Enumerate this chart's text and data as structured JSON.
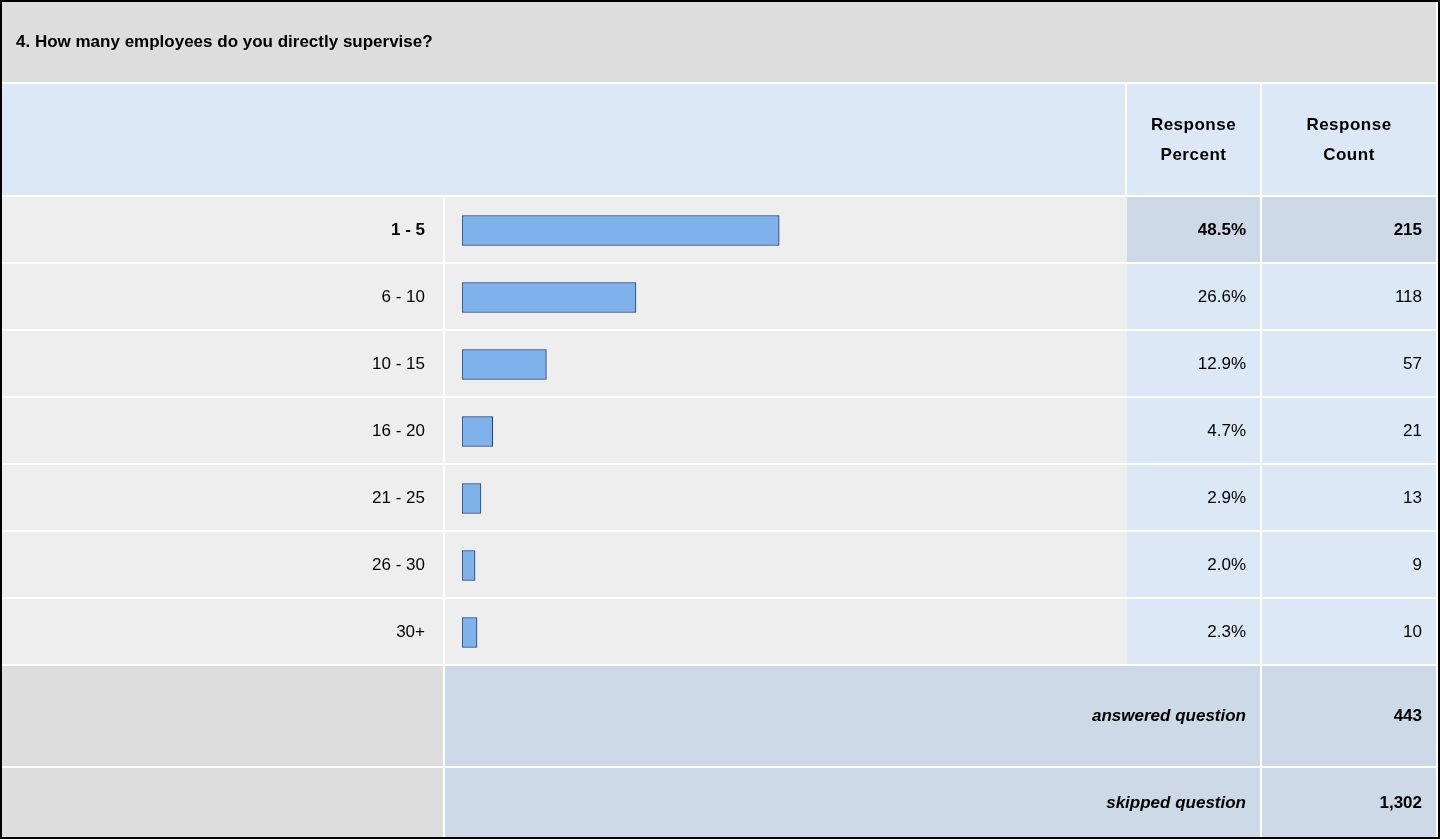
{
  "chart_data": {
    "type": "bar",
    "orientation": "horizontal",
    "title": "4. How many employees do you directly supervise?",
    "categories": [
      "1 - 5",
      "6 - 10",
      "10 - 15",
      "16 - 20",
      "21 - 25",
      "26 - 30",
      "30+"
    ],
    "values": [
      48.5,
      26.6,
      12.9,
      4.7,
      2.9,
      2.0,
      2.3
    ],
    "value_labels": [
      "48.5%",
      "26.6%",
      "12.9%",
      "4.7%",
      "2.9%",
      "2.0%",
      "2.3%"
    ],
    "color": "#7fb2ea",
    "annotations": [
      "Response Percent",
      "Response Count",
      "215",
      "118",
      "57",
      "21",
      "13",
      "9",
      "10",
      "answered question",
      "443",
      "skipped question",
      "1,302"
    ],
    "legend": false,
    "tick_labels": false
  }
}
